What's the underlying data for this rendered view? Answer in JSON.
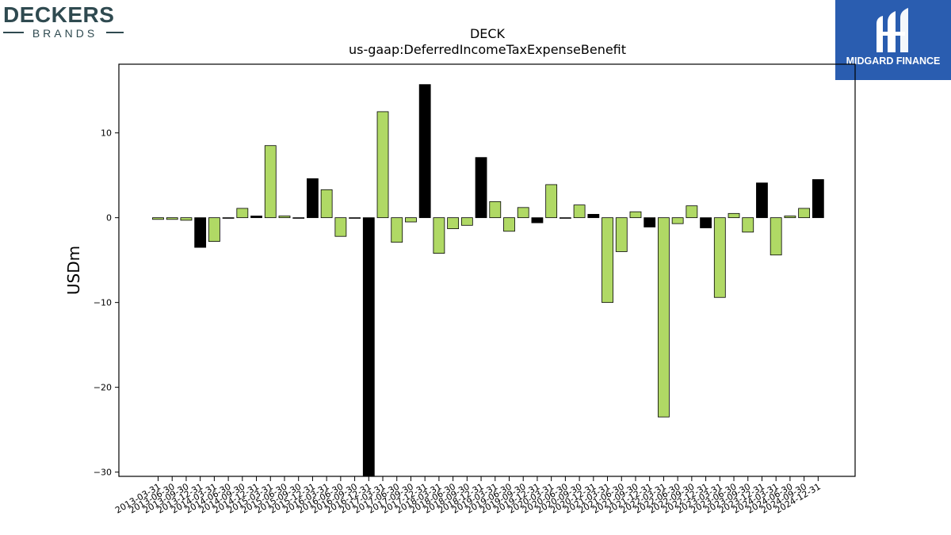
{
  "branding": {
    "company_logo": {
      "name": "DECKERS",
      "tagline": "BRANDS",
      "color": "#2f4a50"
    },
    "publisher_logo": {
      "name": "MIDGARD FINANCE",
      "background": "#2a5db0",
      "text_color": "#ffffff"
    }
  },
  "chart_data": {
    "type": "bar",
    "title": "DECK",
    "subtitle": "us-gaap:DeferredIncomeTaxExpenseBenefit",
    "xlabel": "",
    "ylabel": "USDm",
    "ylim": [
      -30.5,
      18.1
    ],
    "yticks": [
      -30,
      -20,
      -10,
      0,
      10
    ],
    "grid": false,
    "colors": {
      "quarter": "#b0d965",
      "q4": "#000000",
      "edge": "#000000"
    },
    "categories": [
      "2013-03-31",
      "2013-06-30",
      "2013-09-30",
      "2013-12-31",
      "2014-03-31",
      "2014-06-30",
      "2014-09-30",
      "2014-12-31",
      "2015-03-31",
      "2015-06-30",
      "2015-09-30",
      "2015-12-31",
      "2016-03-31",
      "2016-06-30",
      "2016-09-30",
      "2016-12-31",
      "2017-03-31",
      "2017-06-30",
      "2017-09-30",
      "2017-12-31",
      "2018-03-31",
      "2018-06-30",
      "2018-09-30",
      "2018-12-31",
      "2019-03-31",
      "2019-06-30",
      "2019-09-30",
      "2019-12-31",
      "2020-03-31",
      "2020-06-30",
      "2020-09-30",
      "2020-12-31",
      "2021-03-31",
      "2021-06-30",
      "2021-09-30",
      "2021-12-31",
      "2022-03-31",
      "2022-06-30",
      "2022-09-30",
      "2022-12-31",
      "2023-03-31",
      "2023-06-30",
      "2023-09-30",
      "2023-12-31",
      "2024-03-31",
      "2024-06-30",
      "2024-09-30",
      "2024-12-31"
    ],
    "tick_labels": [
      "2013-03-31",
      "2013-06-30",
      "2013-09-30",
      "2013-12-31",
      "2014-03-31",
      "2014-06-30",
      "2014-09-30",
      "2014-12-31",
      "2015-03-31",
      "2015-06-30",
      "2015-09-30",
      "2015-12-31",
      "2016-03-31",
      "2016-06-30",
      "2016-09-30",
      "2016-12-31",
      "2017-03-31",
      "2017-06-30",
      "2017-09-30",
      "2017-12-31",
      "2018-03-31",
      "2018-06-30",
      "2018-09-30",
      "2018-12-31",
      "2019-03-31",
      "2019-06-30",
      "2019-09-30",
      "2019-12-31",
      "2020-03-31",
      "2020-06-30",
      "2020-09-30",
      "2020-12-31",
      "2021-03-31",
      "2021-06-30",
      "2021-09-30",
      "2021-12-31",
      "2022-03-31",
      "2022-06-30",
      "2022-09-30",
      "2022-12-31",
      "2023-03-31",
      "2023-06-30",
      "2023-09-30",
      "2023-12-31",
      "2024-03-31",
      "2024-06-30",
      "2024-09-30",
      "2024-12-31"
    ],
    "values": [
      -0.2,
      -0.2,
      -0.3,
      -3.5,
      -2.8,
      0.0,
      1.1,
      0.2,
      8.5,
      0.2,
      0.0,
      4.6,
      3.3,
      -2.2,
      0.0,
      -31.0,
      12.5,
      -2.9,
      -0.5,
      15.7,
      -4.2,
      -1.3,
      -0.9,
      7.1,
      1.9,
      -1.6,
      1.2,
      -0.6,
      3.9,
      0.0,
      1.5,
      0.4,
      -10.0,
      -4.0,
      0.7,
      -1.1,
      -23.5,
      -0.7,
      1.4,
      -1.2,
      -9.4,
      0.5,
      -1.7,
      4.1,
      -4.4,
      0.2,
      1.1,
      4.5
    ],
    "q4_indices": [
      3,
      7,
      11,
      15,
      19,
      23,
      27,
      31,
      35,
      39,
      43,
      47
    ]
  }
}
